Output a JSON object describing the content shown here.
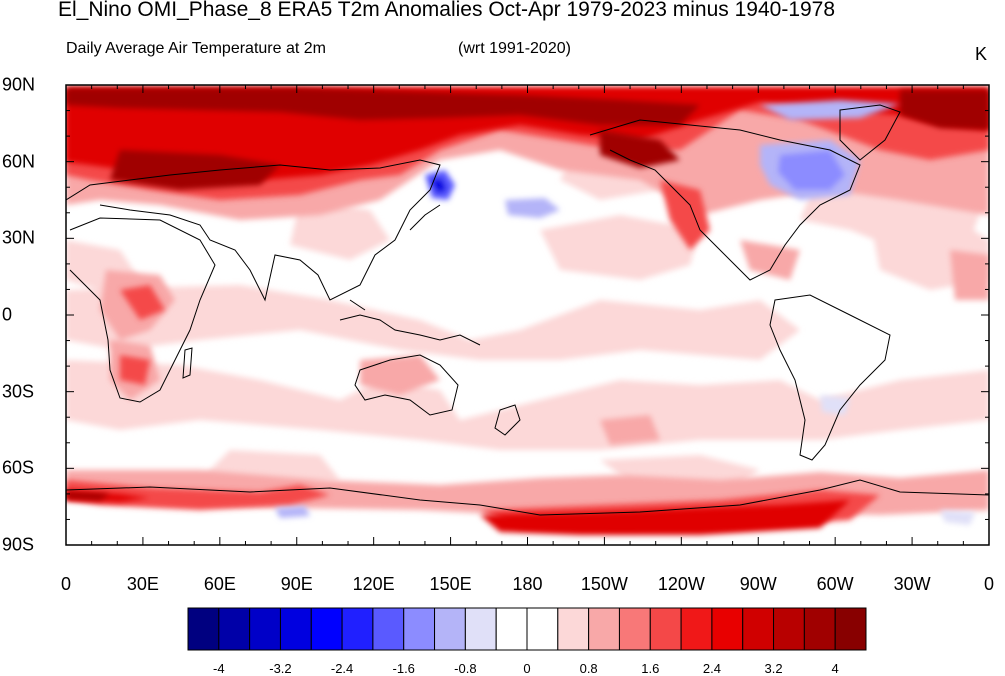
{
  "title": "El_Nino OMI_Phase_8 ERA5 T2m Anomalies Oct-Apr 1979-2023 minus 1940-1978",
  "subtitle_left": "Daily Average Air Temperature at 2m",
  "subtitle_mid": "(wrt 1991-2020)",
  "units": "K",
  "lat_labels": [
    "90N",
    "60N",
    "30N",
    "0",
    "30S",
    "60S",
    "90S"
  ],
  "lon_labels": [
    "0",
    "30E",
    "60E",
    "90E",
    "120E",
    "150E",
    "180",
    "150W",
    "120W",
    "90W",
    "60W",
    "30W",
    "0"
  ],
  "colorbar": {
    "labels": [
      "-4",
      "-3.2",
      "-2.4",
      "-1.6",
      "-0.8",
      "0",
      "0.8",
      "1.6",
      "2.4",
      "3.2",
      "4"
    ],
    "colors": [
      "#000080",
      "#0000a8",
      "#0000c8",
      "#0000e0",
      "#0000ff",
      "#2020ff",
      "#5a5aff",
      "#8c8cff",
      "#b4b4f8",
      "#e0e0f8",
      "#ffffff",
      "#ffffff",
      "#fcd8d8",
      "#f8a8a8",
      "#f87878",
      "#f44848",
      "#f01818",
      "#e80000",
      "#d00000",
      "#b80000",
      "#a00000",
      "#880000"
    ]
  },
  "color_scale": {
    "neutral": "#ffffff",
    "light_pink": "#fcd8d8",
    "pink": "#f8a8a8",
    "red": "#f44848",
    "bright_red": "#e80000",
    "dark_red": "#a00000",
    "light_blue": "#b4b4f8",
    "blue": "#5a5aff",
    "deep_blue": "#0000e0"
  }
}
